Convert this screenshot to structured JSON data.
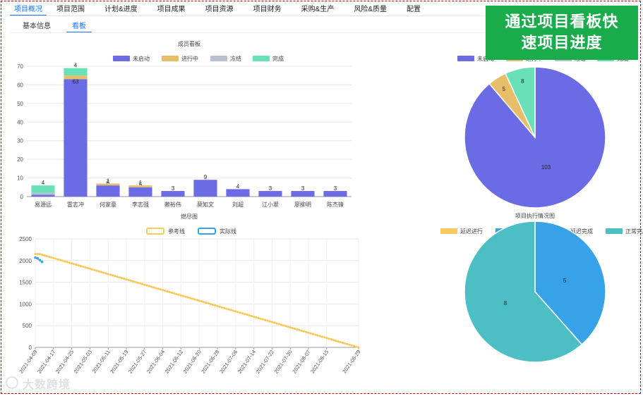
{
  "nav": {
    "tabs": [
      {
        "label": "项目概况"
      },
      {
        "label": "项目范围"
      },
      {
        "label": "计划&进度"
      },
      {
        "label": "项目成果"
      },
      {
        "label": "项目资源"
      },
      {
        "label": "项目财务"
      },
      {
        "label": "采购&生产"
      },
      {
        "label": "风险&质量"
      },
      {
        "label": "配置"
      }
    ],
    "subtabs": [
      {
        "label": "基本信息"
      },
      {
        "label": "看板"
      }
    ]
  },
  "banner": {
    "line1": "通过项目看板快",
    "line2": "速项目进度"
  },
  "watermark": {
    "text": "大数跨境"
  },
  "colors": {
    "blue": "#6c6be6",
    "orange": "#e8bd6a",
    "gray": "#b8c1d1",
    "green": "#6ae0b8",
    "accent": "#1677ff",
    "banner": "#1aab4b"
  },
  "chart_data": [
    {
      "type": "bar",
      "title": "成员看板",
      "legend": [
        "未启动",
        "进行中",
        "冻结",
        "完成"
      ],
      "categories": [
        "易源远",
        "雷志冲",
        "何家豪",
        "李志强",
        "赖裕伟",
        "莫知文",
        "刘超",
        "江小翠",
        "廖柳明",
        "陈杰锋"
      ],
      "series": [
        {
          "name": "未启动",
          "values": [
            1,
            63,
            6,
            5,
            3,
            9,
            4,
            3,
            3,
            3
          ]
        },
        {
          "name": "进行中",
          "values": [
            0,
            2,
            1,
            1,
            0,
            0,
            0,
            0,
            0,
            0
          ]
        },
        {
          "name": "冻结",
          "values": [
            1,
            0,
            0,
            0,
            0,
            0,
            0,
            0,
            0,
            0
          ]
        },
        {
          "name": "完成",
          "values": [
            4,
            4,
            0,
            0,
            0,
            0,
            0,
            0,
            0,
            0
          ]
        }
      ],
      "labels": [
        [
          "1",
          "",
          "",
          "4"
        ],
        [
          "63",
          "2",
          "",
          "4"
        ],
        [
          "6",
          "1",
          "",
          ""
        ],
        [
          "5",
          "1",
          "",
          ""
        ],
        [
          "3",
          "",
          "",
          ""
        ],
        [
          "9",
          "",
          "",
          ""
        ],
        [
          "4",
          "",
          "",
          ""
        ],
        [
          "3",
          "",
          "",
          ""
        ],
        [
          "3",
          "",
          "",
          ""
        ],
        [
          "3",
          "",
          "",
          ""
        ]
      ],
      "ylim": [
        0,
        70
      ],
      "yticks": [
        0,
        10,
        20,
        30,
        40,
        50,
        60,
        70
      ]
    },
    {
      "type": "pie",
      "legend": [
        "未启动",
        "进行中",
        "冻结",
        "完成"
      ],
      "values": [
        103,
        5,
        0,
        8
      ]
    },
    {
      "type": "line",
      "title": "燃尽图",
      "legend": [
        "参考线",
        "实际线"
      ],
      "x_labels": [
        "2021-04-09",
        "2021-04-17",
        "2021-04-25",
        "2021-05-03",
        "2021-05-11",
        "2021-05-19",
        "2021-05-27",
        "2021-06-04",
        "2021-06-12",
        "2021-06-20",
        "2021-06-28",
        "2021-07-06",
        "2021-07-14",
        "2021-07-22",
        "2021-07-30",
        "2021-08-07",
        "2021-08-15",
        "2021-08-29"
      ],
      "series": [
        {
          "name": "参考线",
          "start_value": 2150,
          "end_value": 0,
          "start_date": "2021-04-09",
          "end_date": "2021-08-29",
          "flat_until": "2021-04-11"
        },
        {
          "name": "实际线",
          "points": [
            [
              "2021-04-09",
              2070
            ],
            [
              "2021-04-10",
              2050
            ],
            [
              "2021-04-11",
              2010
            ],
            [
              "2021-04-12",
              1970
            ]
          ]
        }
      ],
      "ylim": [
        0,
        2500
      ],
      "yticks": [
        0,
        500,
        1000,
        1500,
        2000,
        2500
      ]
    },
    {
      "type": "pie",
      "title": "项目执行情况图",
      "legend": [
        "延迟进行",
        "正常进行",
        "延迟完成",
        "正常完成"
      ],
      "values": [
        0,
        5,
        0,
        8
      ]
    }
  ]
}
